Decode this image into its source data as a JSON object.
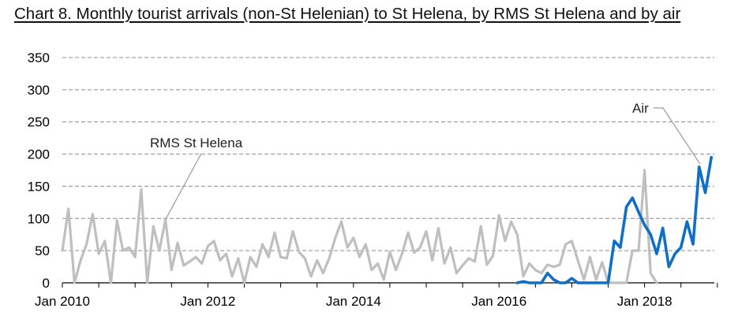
{
  "chart_data": {
    "type": "line",
    "title": "Chart 8. Monthly tourist arrivals (non-St Helenian) to St Helena, by RMS St Helena and by air",
    "xlabel": "",
    "ylabel": "",
    "ylim": [
      0,
      350
    ],
    "yticks": [
      0,
      50,
      100,
      150,
      200,
      250,
      300,
      350
    ],
    "x_start": "Jan 2010",
    "x_end": "Dec 2018",
    "x_tick_labels": [
      "Jan 2010",
      "Jan 2012",
      "Jan 2014",
      "Jan 2016",
      "Jan 2018"
    ],
    "grid": "horizontal dashed",
    "series": [
      {
        "name": "RMS St Helena",
        "color": "#bfbfbf",
        "start": "Jan 2010",
        "values": [
          50,
          115,
          0,
          35,
          60,
          107,
          45,
          65,
          0,
          97,
          50,
          55,
          40,
          145,
          0,
          88,
          50,
          98,
          20,
          62,
          27,
          33,
          40,
          30,
          57,
          65,
          35,
          45,
          10,
          38,
          0,
          40,
          25,
          60,
          40,
          78,
          40,
          38,
          80,
          48,
          38,
          10,
          35,
          15,
          38,
          70,
          95,
          55,
          70,
          40,
          60,
          20,
          30,
          5,
          48,
          20,
          45,
          78,
          47,
          55,
          80,
          35,
          85,
          30,
          55,
          15,
          27,
          38,
          33,
          88,
          28,
          42,
          105,
          65,
          95,
          75,
          10,
          30,
          20,
          15,
          28,
          25,
          28,
          60,
          65,
          35,
          5,
          40,
          5,
          32,
          0,
          0,
          0,
          0,
          50,
          50,
          175,
          15,
          0
        ]
      },
      {
        "name": "Air",
        "color": "#0f6fc6",
        "start": "Apr 2016",
        "values": [
          0,
          2,
          0,
          0,
          0,
          15,
          5,
          0,
          0,
          7,
          0,
          0,
          0,
          0,
          0,
          0,
          65,
          55,
          118,
          132,
          110,
          90,
          75,
          45,
          85,
          25,
          45,
          55,
          95,
          60,
          180,
          140,
          195
        ]
      }
    ]
  },
  "annotations": {
    "rms_label": "RMS St Helena",
    "air_label": "Air"
  }
}
